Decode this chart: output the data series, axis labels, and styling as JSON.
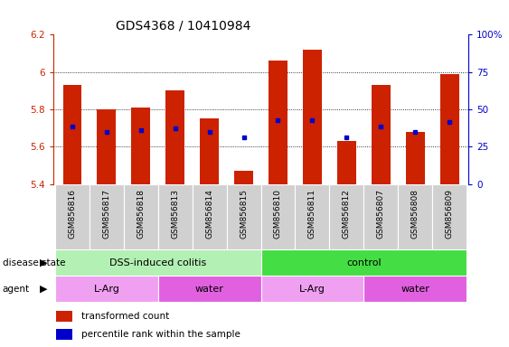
{
  "title": "GDS4368 / 10410984",
  "samples": [
    "GSM856816",
    "GSM856817",
    "GSM856818",
    "GSM856813",
    "GSM856814",
    "GSM856815",
    "GSM856810",
    "GSM856811",
    "GSM856812",
    "GSM856807",
    "GSM856808",
    "GSM856809"
  ],
  "bar_values": [
    5.93,
    5.8,
    5.81,
    5.9,
    5.75,
    5.47,
    6.06,
    6.12,
    5.63,
    5.93,
    5.68,
    5.99
  ],
  "blue_values": [
    5.71,
    5.68,
    5.69,
    5.7,
    5.68,
    5.65,
    5.74,
    5.74,
    5.65,
    5.71,
    5.68,
    5.73
  ],
  "ymin": 5.4,
  "ymax": 6.2,
  "yticks_left": [
    5.4,
    5.6,
    5.8,
    6.0,
    6.2
  ],
  "ytick_left_labels": [
    "5.4",
    "5.6",
    "5.8",
    "6",
    "6.2"
  ],
  "right_ytick_percents": [
    0,
    25,
    50,
    75,
    100
  ],
  "right_yticklabels": [
    "0",
    "25",
    "50",
    "75",
    "100%"
  ],
  "disease_state_groups": [
    {
      "label": "DSS-induced colitis",
      "start": 0,
      "end": 6,
      "color": "#b3f0b3"
    },
    {
      "label": "control",
      "start": 6,
      "end": 12,
      "color": "#44dd44"
    }
  ],
  "agent_groups": [
    {
      "label": "L-Arg",
      "start": 0,
      "end": 3,
      "color": "#f0a0f0"
    },
    {
      "label": "water",
      "start": 3,
      "end": 6,
      "color": "#e060e0"
    },
    {
      "label": "L-Arg",
      "start": 6,
      "end": 9,
      "color": "#f0a0f0"
    },
    {
      "label": "water",
      "start": 9,
      "end": 12,
      "color": "#e060e0"
    }
  ],
  "bar_color": "#cc2200",
  "blue_color": "#0000cc",
  "bar_width": 0.55,
  "legend_labels": [
    "transformed count",
    "percentile rank within the sample"
  ],
  "disease_label": "disease state",
  "agent_label": "agent",
  "left_tick_color": "#cc2200",
  "right_tick_color": "#0000cc",
  "grid_values": [
    5.6,
    5.8,
    6.0
  ],
  "xtick_bg_color": "#d0d0d0",
  "xtick_sep_color": "#ffffff"
}
